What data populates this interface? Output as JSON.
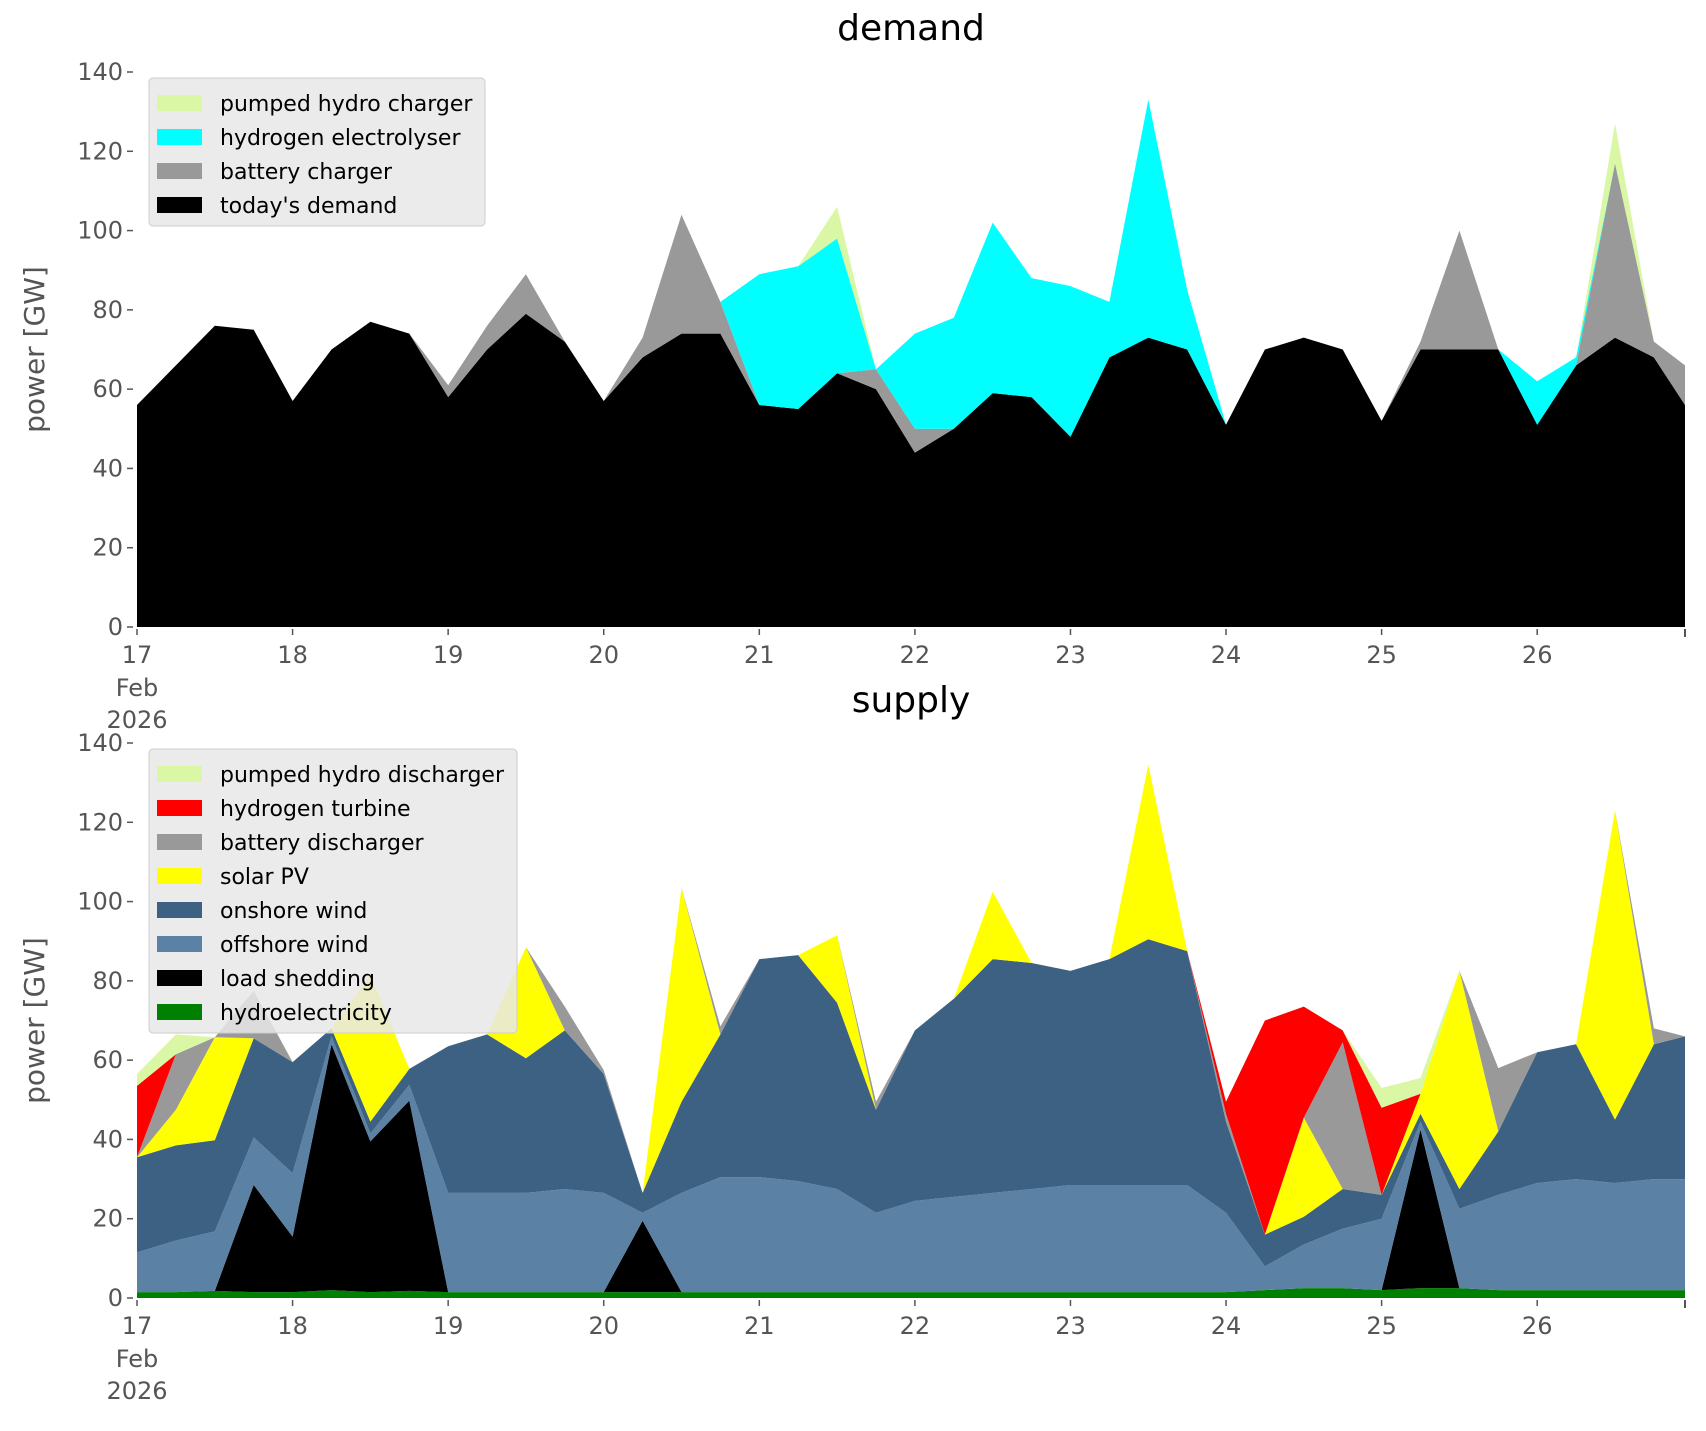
{
  "chart_data": [
    {
      "type": "area",
      "stacked": true,
      "title": "demand",
      "xlabel": "",
      "ylabel": "power [GW]",
      "xlim": [
        17,
        26.95
      ],
      "ylim": [
        0,
        140
      ],
      "grid": false,
      "legend_position": "top-left",
      "x_ticks": [
        "17",
        "18",
        "19",
        "20",
        "21",
        "22",
        "23",
        "24",
        "25",
        "26"
      ],
      "x_tick_first_extra": [
        "Feb",
        "2026"
      ],
      "y_ticks": [
        "0",
        "20",
        "40",
        "60",
        "80",
        "100",
        "120",
        "140"
      ],
      "x": [
        17,
        17.25,
        17.5,
        17.75,
        18,
        18.25,
        18.5,
        18.75,
        19,
        19.25,
        19.5,
        19.75,
        20,
        20.25,
        20.5,
        20.75,
        21,
        21.25,
        21.5,
        21.75,
        22,
        22.25,
        22.5,
        22.75,
        23,
        23.25,
        23.5,
        23.75,
        24,
        24.25,
        24.5,
        24.75,
        25,
        25.25,
        25.5,
        25.75,
        26,
        26.25,
        26.5,
        26.75,
        26.95
      ],
      "series": [
        {
          "name": "today's demand",
          "color": "#000000",
          "values": [
            56,
            66,
            76,
            75,
            57,
            70,
            77,
            74,
            58,
            70,
            79,
            72,
            57,
            68,
            74,
            74,
            56,
            55,
            64,
            60,
            44,
            50,
            59,
            58,
            48,
            68,
            73,
            70,
            51,
            70,
            73,
            70,
            52,
            70,
            70,
            70,
            51,
            66,
            73,
            68,
            56
          ]
        },
        {
          "name": "battery charger",
          "color": "#999999",
          "values": [
            0,
            0,
            0,
            0,
            0,
            0,
            0,
            0,
            3,
            6,
            10,
            0,
            0,
            5,
            30,
            8,
            0,
            0,
            0,
            5,
            6,
            0,
            0,
            0,
            0,
            0,
            0,
            0,
            0,
            0,
            0,
            0,
            0,
            2,
            30,
            0,
            0,
            0,
            44,
            4,
            10
          ]
        },
        {
          "name": "hydrogen electrolyser",
          "color": "#00ffff",
          "values": [
            0,
            0,
            0,
            0,
            0,
            0,
            0,
            0,
            0,
            0,
            0,
            0,
            0,
            0,
            0,
            0,
            33,
            36,
            34,
            0,
            24,
            28,
            43,
            30,
            38,
            14,
            60,
            15,
            0,
            0,
            0,
            0,
            0,
            0,
            0,
            0,
            11,
            2,
            0,
            0,
            0
          ]
        },
        {
          "name": "pumped hydro charger",
          "color": "#daf7a6",
          "values": [
            0,
            0,
            0,
            0,
            0,
            0,
            0,
            0,
            0,
            0,
            0,
            0,
            0,
            0,
            0,
            0,
            0,
            0,
            8,
            0,
            0,
            0,
            0,
            0,
            0,
            0,
            0,
            0,
            0,
            0,
            0,
            0,
            0,
            0,
            0,
            0,
            0,
            0,
            10,
            0,
            0
          ]
        }
      ]
    },
    {
      "type": "area",
      "stacked": true,
      "title": "supply",
      "xlabel": "",
      "ylabel": "power [GW]",
      "xlim": [
        17,
        26.95
      ],
      "ylim": [
        0,
        140
      ],
      "grid": false,
      "legend_position": "top-left",
      "x_ticks": [
        "17",
        "18",
        "19",
        "20",
        "21",
        "22",
        "23",
        "24",
        "25",
        "26"
      ],
      "x_tick_first_extra": [
        "Feb",
        "2026"
      ],
      "y_ticks": [
        "0",
        "20",
        "40",
        "60",
        "80",
        "100",
        "120",
        "140"
      ],
      "x": [
        17,
        17.25,
        17.5,
        17.75,
        18,
        18.25,
        18.5,
        18.75,
        19,
        19.25,
        19.5,
        19.75,
        20,
        20.25,
        20.5,
        20.75,
        21,
        21.25,
        21.5,
        21.75,
        22,
        22.25,
        22.5,
        22.75,
        23,
        23.25,
        23.5,
        23.75,
        24,
        24.25,
        24.5,
        24.75,
        25,
        25.25,
        25.5,
        25.75,
        26,
        26.25,
        26.5,
        26.75,
        26.95
      ],
      "series": [
        {
          "name": "hydroelectricity",
          "color": "#008000",
          "values": [
            1.5,
            1.5,
            1.8,
            1.5,
            1.5,
            2,
            1.5,
            1.8,
            1.5,
            1.5,
            1.5,
            1.5,
            1.5,
            1.5,
            1.5,
            1.5,
            1.5,
            1.5,
            1.5,
            1.5,
            1.5,
            1.5,
            1.5,
            1.5,
            1.5,
            1.5,
            1.5,
            1.5,
            1.5,
            2,
            2.5,
            2.5,
            2,
            2.5,
            2.5,
            2,
            2,
            2,
            2,
            2,
            2
          ]
        },
        {
          "name": "load shedding",
          "color": "#000000",
          "values": [
            0,
            0,
            0,
            27,
            14,
            62,
            38,
            48,
            0,
            0,
            0,
            0,
            0,
            18,
            0,
            0,
            0,
            0,
            0,
            0,
            0,
            0,
            0,
            0,
            0,
            0,
            0,
            0,
            0,
            0,
            0,
            0,
            0,
            40,
            0,
            0,
            0,
            0,
            0,
            0,
            0
          ]
        },
        {
          "name": "offshore wind",
          "color": "#5b82a4",
          "values": [
            10,
            13,
            15,
            12,
            16,
            2,
            2,
            4,
            25,
            25,
            25,
            26,
            25,
            2,
            25,
            29,
            29,
            28,
            26,
            20,
            23,
            24,
            25,
            26,
            27,
            27,
            27,
            27,
            20,
            6,
            11,
            15,
            18,
            2,
            20,
            24,
            27,
            28,
            27,
            28,
            28
          ]
        },
        {
          "name": "onshore wind",
          "color": "#3c6182",
          "values": [
            24,
            24,
            23,
            25,
            28,
            2,
            3,
            4,
            37,
            40,
            34,
            40,
            30,
            5,
            23,
            36,
            55,
            57,
            47,
            26,
            43,
            50,
            59,
            57,
            54,
            57,
            62,
            59,
            23,
            8,
            7,
            10,
            6,
            2,
            5,
            16,
            33,
            34,
            16,
            34,
            36
          ]
        },
        {
          "name": "solar PV",
          "color": "#ffff00",
          "values": [
            0,
            9,
            26,
            0,
            0,
            0,
            37,
            0,
            0,
            0,
            28,
            0,
            0,
            0,
            54,
            0,
            0,
            0,
            17,
            0,
            0,
            0,
            17,
            0,
            0,
            0,
            44,
            0,
            0,
            0,
            25,
            0,
            0,
            5,
            55,
            0,
            0,
            0,
            78,
            0,
            0
          ]
        },
        {
          "name": "battery discharger",
          "color": "#999999",
          "values": [
            0,
            14,
            0,
            12,
            0,
            0,
            0,
            0,
            0,
            0,
            0,
            6,
            1,
            0,
            0,
            2,
            0,
            0,
            0,
            2,
            0,
            0,
            0,
            0,
            0,
            0,
            0,
            0,
            2,
            0,
            0,
            37,
            0,
            0,
            0,
            16,
            0,
            0,
            0,
            4,
            0
          ]
        },
        {
          "name": "hydrogen turbine",
          "color": "#ff0000",
          "values": [
            18,
            0,
            0,
            0,
            0,
            0,
            0,
            0,
            0,
            0,
            0,
            0,
            0,
            0,
            0,
            0,
            0,
            0,
            0,
            0,
            0,
            0,
            0,
            0,
            0,
            0,
            0,
            0,
            3,
            54,
            28,
            3,
            22,
            0,
            0,
            0,
            0,
            0,
            0,
            0,
            0
          ]
        },
        {
          "name": "pumped hydro discharger",
          "color": "#daf7a6",
          "values": [
            3,
            5,
            0,
            0,
            0,
            0,
            0,
            0,
            0,
            0,
            0,
            0,
            0,
            0,
            0,
            0,
            0,
            0,
            0,
            0,
            0,
            0,
            0,
            0,
            0,
            0,
            0,
            0,
            0,
            0,
            0,
            0,
            5,
            4,
            0,
            0,
            0,
            0,
            0,
            0,
            0
          ]
        }
      ]
    }
  ],
  "legends": [
    [
      "pumped hydro charger",
      "hydrogen electrolyser",
      "battery charger",
      "today's demand"
    ],
    [
      "pumped hydro discharger",
      "hydrogen turbine",
      "battery discharger",
      "solar PV",
      "onshore wind",
      "offshore wind",
      "load shedding",
      "hydroelectricity"
    ]
  ]
}
